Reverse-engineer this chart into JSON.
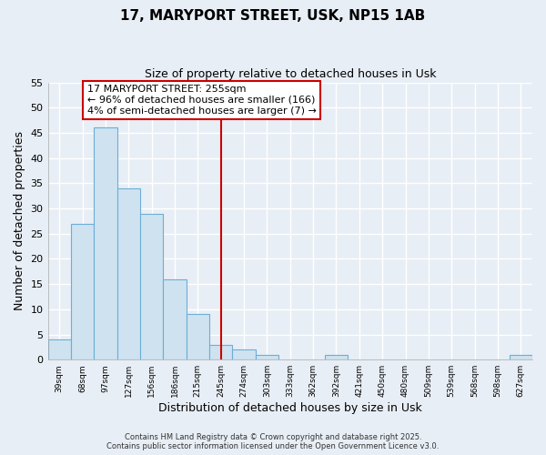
{
  "title1": "17, MARYPORT STREET, USK, NP15 1AB",
  "title2": "Size of property relative to detached houses in Usk",
  "xlabel": "Distribution of detached houses by size in Usk",
  "ylabel": "Number of detached properties",
  "bin_labels": [
    "39sqm",
    "68sqm",
    "97sqm",
    "127sqm",
    "156sqm",
    "186sqm",
    "215sqm",
    "245sqm",
    "274sqm",
    "303sqm",
    "333sqm",
    "362sqm",
    "392sqm",
    "421sqm",
    "450sqm",
    "480sqm",
    "509sqm",
    "539sqm",
    "568sqm",
    "598sqm",
    "627sqm"
  ],
  "bar_values": [
    4,
    27,
    46,
    34,
    29,
    16,
    9,
    3,
    2,
    1,
    0,
    0,
    1,
    0,
    0,
    0,
    0,
    0,
    0,
    0,
    1
  ],
  "bar_color": "#cfe2f0",
  "bar_edge_color": "#6baed6",
  "vline_x": 7,
  "vline_color": "#cc0000",
  "ylim": [
    0,
    55
  ],
  "yticks": [
    0,
    5,
    10,
    15,
    20,
    25,
    30,
    35,
    40,
    45,
    50,
    55
  ],
  "annotation_title": "17 MARYPORT STREET: 255sqm",
  "annotation_line1": "← 96% of detached houses are smaller (166)",
  "annotation_line2": "4% of semi-detached houses are larger (7) →",
  "annotation_box_color": "#ffffff",
  "annotation_box_edge": "#cc0000",
  "footer1": "Contains HM Land Registry data © Crown copyright and database right 2025.",
  "footer2": "Contains public sector information licensed under the Open Government Licence v3.0.",
  "bg_color": "#e8eef5",
  "grid_color": "#ffffff",
  "spine_color": "#aaaaaa"
}
